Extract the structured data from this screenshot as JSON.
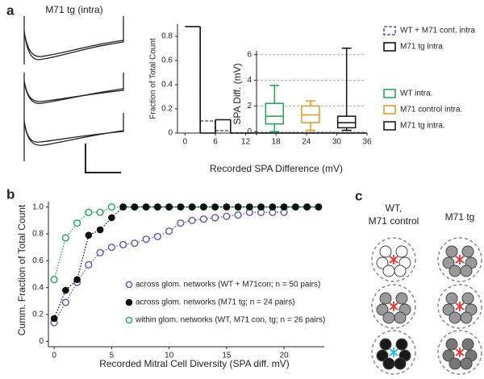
{
  "panel_labels": [
    "a",
    "b",
    "c"
  ],
  "traces_label": "M71 tg (intra)",
  "diagram": {
    "column_titles": [
      [
        "WT,",
        "M71 control"
      ],
      [
        "M71 tg"
      ]
    ]
  },
  "chart_data": [
    {
      "type": "histogram",
      "xlabel": "Recorded SPA Difference (mV)",
      "ylabel": "Fraction of Total Count",
      "bins": [
        0,
        3,
        6,
        9,
        12,
        15,
        18,
        21,
        24,
        27,
        30,
        33,
        36
      ],
      "series": [
        {
          "name": "WT + M71 cont. intra",
          "color": "#5b55b5",
          "dashed": true,
          "values": [
            0.88,
            0.1,
            0.02,
            0,
            0,
            0,
            0,
            0,
            0,
            0,
            0,
            0
          ]
        },
        {
          "name": "M71 tg intra",
          "color": "#111111",
          "dashed": false,
          "values": [
            0.88,
            0,
            0.11,
            0,
            0,
            0,
            0,
            0,
            0,
            0,
            0,
            0
          ]
        }
      ],
      "xlim": [
        -1.5,
        36
      ],
      "xticks": [
        0,
        6,
        12,
        18,
        24,
        30,
        36
      ],
      "ylim": [
        0,
        0.9
      ],
      "yticks": [
        0,
        0.2,
        0.4,
        0.6,
        0.8
      ]
    },
    {
      "type": "box",
      "ylabel": "SPA Diff. (mV)",
      "grid": true,
      "boxes": [
        {
          "name": "WT intra.",
          "color": "#1aa84a",
          "min": 0,
          "q1": 0.6,
          "median": 1.2,
          "q3": 2.2,
          "max": 3.6
        },
        {
          "name": "M71 control intra.",
          "color": "#e8961e",
          "min": 0.1,
          "q1": 0.7,
          "median": 1.3,
          "q3": 2.0,
          "max": 2.4
        },
        {
          "name": "M71 tg intra.",
          "color": "#111111",
          "min": 0.1,
          "q1": 0.3,
          "median": 0.7,
          "q3": 1.2,
          "max": 6.5
        }
      ],
      "ylim": [
        -0.3,
        6.8
      ],
      "yticks": [
        0,
        2,
        4,
        6
      ]
    },
    {
      "type": "line",
      "xlabel": "Recorded Mitral Cell Diversity (SPA diff. mV)",
      "ylabel": "Cumm. Fraction of Total Count",
      "series": [
        {
          "name": "across glom. networks (WT + M71con; n = 50 pairs)",
          "color": "#5b55b5",
          "filled": false,
          "x": [
            0,
            1,
            2,
            3,
            4,
            5,
            6,
            7,
            8,
            9,
            10,
            11,
            12,
            13,
            14,
            15,
            16,
            17,
            18,
            19,
            20
          ],
          "values": [
            0.14,
            0.29,
            0.44,
            0.57,
            0.66,
            0.7,
            0.72,
            0.73,
            0.76,
            0.78,
            0.82,
            0.88,
            0.9,
            0.91,
            0.92,
            0.93,
            0.94,
            0.96,
            0.96,
            0.96,
            0.96
          ]
        },
        {
          "name": "across glom. networks (M71 tg; n = 24 pairs)",
          "color": "#111111",
          "filled": true,
          "x": [
            0,
            1,
            2,
            3,
            4,
            5,
            6,
            7,
            8,
            9,
            10,
            11,
            12,
            13,
            14,
            15,
            16,
            17,
            18,
            19,
            20,
            21,
            22,
            23
          ],
          "values": [
            0.17,
            0.38,
            0.46,
            0.79,
            0.83,
            0.92,
            1,
            1,
            1,
            1,
            1,
            1,
            1,
            1,
            1,
            1,
            1,
            1,
            1,
            1,
            1,
            1,
            1,
            1
          ]
        },
        {
          "name": "within glom. networks (WT, M71 con, tg; n = 26 pairs)",
          "color": "#1aa84a",
          "filled": false,
          "x": [
            0,
            1,
            2,
            3,
            4,
            5,
            6,
            7,
            8,
            9,
            10,
            11,
            12,
            13,
            14,
            15,
            16,
            17,
            18,
            19,
            20,
            21,
            22,
            23
          ],
          "values": [
            0.46,
            0.77,
            0.88,
            0.96,
            0.96,
            1,
            1,
            1,
            1,
            1,
            1,
            1,
            1,
            1,
            1,
            1,
            1,
            1,
            1,
            1,
            1,
            1,
            1,
            1
          ]
        }
      ],
      "xlim": [
        -0.5,
        23.5
      ],
      "xticks": [
        0,
        5,
        10,
        15,
        20
      ],
      "ylim": [
        -0.04,
        1.04
      ],
      "yticks": [
        0,
        0.2,
        0.4,
        0.6,
        0.8,
        {
          "value": 1,
          "label": "1.0"
        }
      ]
    }
  ]
}
